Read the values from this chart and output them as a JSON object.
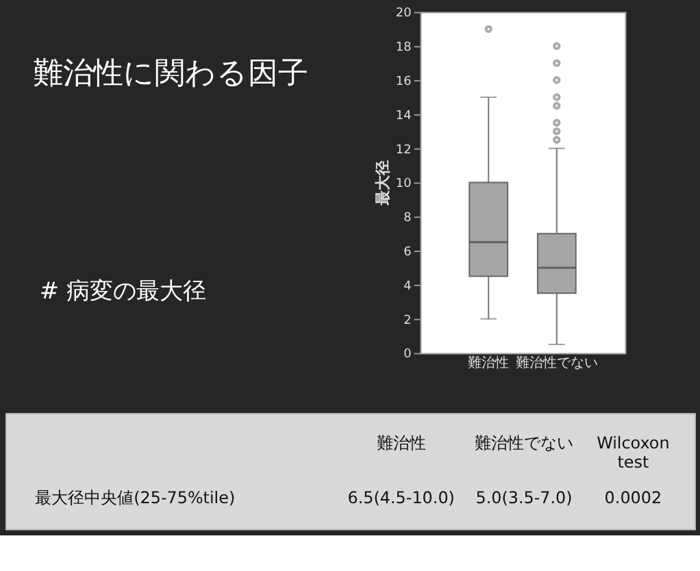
{
  "chart_data": {
    "type": "box",
    "title": "難治性に関わる因子",
    "subtitle": "# 病変の最大径",
    "ylabel": "最大径",
    "categories": [
      "難治性",
      "難治性でない"
    ],
    "boxes": [
      {
        "low": 2,
        "q1": 4.5,
        "median": 6.5,
        "q3": 10,
        "high": 15,
        "outliers": [
          19
        ]
      },
      {
        "low": 0.5,
        "q1": 3.5,
        "median": 5,
        "q3": 7,
        "high": 12,
        "outliers": [
          12.5,
          13,
          13.5,
          14.5,
          15,
          16,
          17,
          18
        ]
      }
    ],
    "color": "#a6a6a6",
    "ylim": [
      0,
      20
    ],
    "yticks": [
      0,
      2,
      4,
      6,
      8,
      10,
      12,
      14,
      16,
      18,
      20
    ],
    "grid": false,
    "annotations": [
      "難治性",
      "難治性でない",
      "Wilcoxon test",
      "最大径中央値(25-75%tile)",
      "6.5(4.5-10.0)",
      "5.0(3.5-7.0)",
      "0.0002"
    ]
  }
}
